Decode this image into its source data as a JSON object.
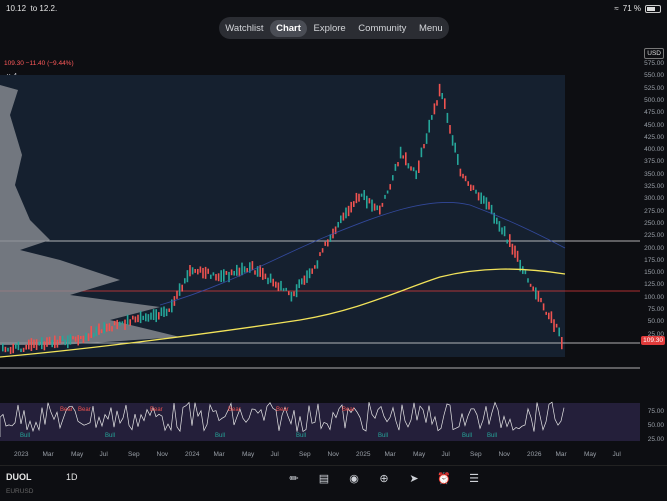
{
  "status": {
    "time": "10.12",
    "date": "to 12.2.",
    "battery": "71 %"
  },
  "nav": {
    "tabs": [
      "Watchlist",
      "Chart",
      "Explore",
      "Community",
      "Menu"
    ],
    "active": "Chart"
  },
  "symbol": {
    "ticker": "DUOL",
    "interval": "1D",
    "currency": "USD",
    "pair_hint": "EURUSD",
    "change_text": "109.30 −11.40 (−9.44%)",
    "indicator_count": "4",
    "current_price": "109.30"
  },
  "price_axis": [
    "575.00",
    "550.00",
    "525.00",
    "500.00",
    "475.00",
    "450.00",
    "425.00",
    "400.00",
    "375.00",
    "350.00",
    "325.00",
    "300.00",
    "275.00",
    "250.00",
    "225.00",
    "200.00",
    "175.00",
    "150.00",
    "125.00",
    "100.00",
    "75.00",
    "50.00",
    "25.00"
  ],
  "rsi_axis": [
    "75.00",
    "50.00",
    "25.00"
  ],
  "date_axis": [
    "2023",
    "Mar",
    "May",
    "Jul",
    "Sep",
    "Nov",
    "2024",
    "Mar",
    "May",
    "Jul",
    "Sep",
    "Nov",
    "2025",
    "Mar",
    "May",
    "Jul",
    "Sep",
    "Nov",
    "2026",
    "Mar",
    "May",
    "Jul"
  ],
  "signals": {
    "bear": "Bear",
    "bull": "Bull"
  },
  "colors": {
    "bg": "#0d0e12",
    "chart_bg": "#151a26",
    "up": "#26a69a",
    "down": "#ef5350",
    "yellow_ma": "#f2e35a",
    "red_line": "#e03b3b",
    "rsi": "#e8e8e8",
    "rsi_band": "#3a2d55"
  },
  "tools": [
    "brush-icon",
    "calendar-icon",
    "tv-dark-icon",
    "add-icon",
    "navigate-icon",
    "alert-icon",
    "layers-icon"
  ]
}
